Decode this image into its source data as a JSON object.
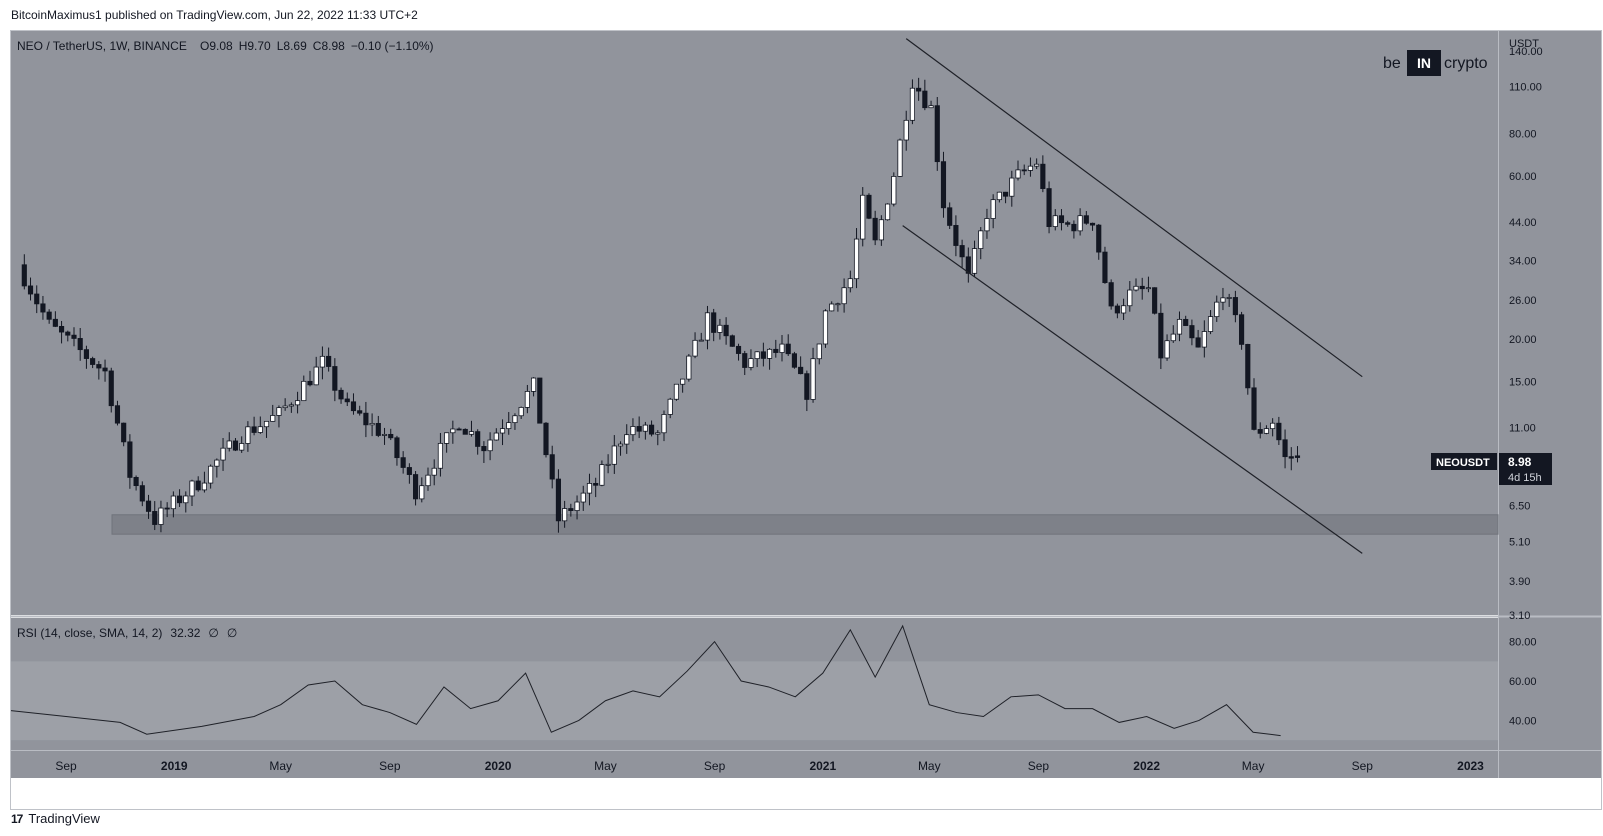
{
  "header": {
    "published": "BitcoinMaximus1 published on TradingView.com, Jun 22, 2022 11:33 UTC+2"
  },
  "legend": {
    "symbol": "NEO / TetherUS, 1W, BINANCE",
    "o_label": "O",
    "o": "9.08",
    "h_label": "H",
    "h": "9.70",
    "l_label": "L",
    "l": "8.69",
    "c_label": "C",
    "c": "8.98",
    "change": "−0.10 (−1.10%)"
  },
  "logo": {
    "left": "be",
    "mid": "IN",
    "right": "crypto"
  },
  "price_axis": {
    "currency": "USDT",
    "ticks": [
      "140.00",
      "110.00",
      "80.00",
      "60.00",
      "44.00",
      "34.00",
      "26.00",
      "20.00",
      "15.00",
      "11.00",
      "8.98",
      "6.50",
      "5.10",
      "3.90",
      "3.10"
    ]
  },
  "price_tag": {
    "symbol": "NEOUSDT",
    "price": "8.98",
    "countdown": "4d 15h"
  },
  "rsi": {
    "label": "RSI (14, close, SMA, 14, 2)",
    "value": "32.32",
    "na1": "∅",
    "na2": "∅",
    "ticks": [
      "80.00",
      "60.00",
      "40.00"
    ]
  },
  "time_axis": [
    "Sep",
    "2019",
    "May",
    "Sep",
    "2020",
    "May",
    "Sep",
    "2021",
    "May",
    "Sep",
    "2022",
    "May",
    "Sep",
    "2023"
  ],
  "footer": {
    "brand": "TradingView"
  },
  "colors": {
    "pane_bg": "#91949c",
    "rsi_band": "#9da0a7",
    "support": "#7e8189",
    "candle_up": "#ffffff",
    "candle_down": "#131722",
    "line": "#1f2128"
  },
  "chart_data": {
    "type": "candlestick",
    "title": "NEO / TetherUS, 1W, BINANCE",
    "y_scale": "log",
    "ylim": [
      3.1,
      160
    ],
    "x_range": [
      "2018-07",
      "2023-02"
    ],
    "support_zone": [
      5.35,
      6.1
    ],
    "channel": {
      "upper": [
        [
          "2021-04-05",
          152
        ],
        [
          "2022-09-01",
          15.5
        ]
      ],
      "lower": [
        [
          "2021-04-01",
          43
        ],
        [
          "2022-09-01",
          4.7
        ]
      ]
    },
    "candle_anchor": [
      [
        "2018-07-16",
        33
      ],
      [
        "2018-08-20",
        22
      ],
      [
        "2018-10-22",
        16
      ],
      [
        "2018-11-19",
        8
      ],
      [
        "2018-12-17",
        5.9
      ],
      [
        "2019-02-04",
        7.6
      ],
      [
        "2019-03-25",
        10.5
      ],
      [
        "2019-05-06",
        12
      ],
      [
        "2019-06-24",
        17
      ],
      [
        "2019-07-22",
        12.5
      ],
      [
        "2019-09-02",
        10.5
      ],
      [
        "2019-10-07",
        7.2
      ],
      [
        "2019-11-25",
        11.5
      ],
      [
        "2019-12-23",
        9.7
      ],
      [
        "2020-02-17",
        14.5
      ],
      [
        "2020-03-16",
        5.9
      ],
      [
        "2020-04-27",
        7.5
      ],
      [
        "2020-06-01",
        11
      ],
      [
        "2020-07-06",
        10.5
      ],
      [
        "2020-08-10",
        17
      ],
      [
        "2020-08-31",
        23
      ],
      [
        "2020-10-12",
        17
      ],
      [
        "2020-11-23",
        18.5
      ],
      [
        "2020-12-21",
        14
      ],
      [
        "2021-01-11",
        24
      ],
      [
        "2021-02-08",
        30
      ],
      [
        "2021-02-22",
        50
      ],
      [
        "2021-03-08",
        38
      ],
      [
        "2021-03-29",
        61
      ],
      [
        "2021-04-19",
        115
      ],
      [
        "2021-05-10",
        95
      ],
      [
        "2021-05-24",
        50
      ],
      [
        "2021-06-21",
        30
      ],
      [
        "2021-07-12",
        47
      ],
      [
        "2021-08-16",
        60
      ],
      [
        "2021-09-06",
        66
      ],
      [
        "2021-09-20",
        44
      ],
      [
        "2021-10-11",
        43
      ],
      [
        "2021-11-08",
        45
      ],
      [
        "2021-11-29",
        24
      ],
      [
        "2021-12-20",
        27
      ],
      [
        "2022-01-10",
        28
      ],
      [
        "2022-01-24",
        18
      ],
      [
        "2022-02-14",
        22
      ],
      [
        "2022-03-07",
        18.5
      ],
      [
        "2022-04-04",
        28
      ],
      [
        "2022-04-25",
        20
      ],
      [
        "2022-05-09",
        10.5
      ],
      [
        "2022-05-30",
        11.5
      ],
      [
        "2022-06-13",
        8.9
      ],
      [
        "2022-06-20",
        8.98
      ]
    ],
    "last_candle": {
      "o": 9.08,
      "h": 9.7,
      "l": 8.69,
      "c": 8.98
    },
    "rsi_series": [
      [
        "2018-07",
        45
      ],
      [
        "2018-09",
        42
      ],
      [
        "2018-11",
        39
      ],
      [
        "2018-12",
        33
      ],
      [
        "2019-02",
        37
      ],
      [
        "2019-04",
        42
      ],
      [
        "2019-05",
        48
      ],
      [
        "2019-06",
        58
      ],
      [
        "2019-07",
        60
      ],
      [
        "2019-08",
        48
      ],
      [
        "2019-09",
        44
      ],
      [
        "2019-10",
        38
      ],
      [
        "2019-11",
        57
      ],
      [
        "2019-12",
        46
      ],
      [
        "2020-01",
        50
      ],
      [
        "2020-02",
        64
      ],
      [
        "2020-03",
        34
      ],
      [
        "2020-04",
        40
      ],
      [
        "2020-05",
        50
      ],
      [
        "2020-06",
        55
      ],
      [
        "2020-07",
        52
      ],
      [
        "2020-08",
        65
      ],
      [
        "2020-09",
        80
      ],
      [
        "2020-10",
        60
      ],
      [
        "2020-11",
        57
      ],
      [
        "2020-12",
        52
      ],
      [
        "2021-01",
        64
      ],
      [
        "2021-02",
        86
      ],
      [
        "2021-03",
        62
      ],
      [
        "2021-04",
        88
      ],
      [
        "2021-05",
        48
      ],
      [
        "2021-06",
        44
      ],
      [
        "2021-07",
        42
      ],
      [
        "2021-08",
        52
      ],
      [
        "2021-09",
        53
      ],
      [
        "2021-10",
        46
      ],
      [
        "2021-11",
        46
      ],
      [
        "2021-12",
        39
      ],
      [
        "2022-01",
        42
      ],
      [
        "2022-02",
        36
      ],
      [
        "2022-03",
        40
      ],
      [
        "2022-04",
        48
      ],
      [
        "2022-05",
        34
      ],
      [
        "2022-06",
        32.32
      ]
    ]
  }
}
